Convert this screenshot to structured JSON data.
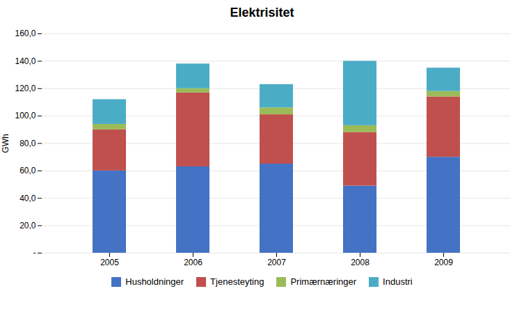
{
  "chart_data": {
    "type": "bar",
    "stacked": true,
    "title": "Elektrisitet",
    "categories": [
      "2005",
      "2006",
      "2007",
      "2008",
      "2009"
    ],
    "series": [
      {
        "name": "Husholdninger",
        "color": "#4472C4",
        "values": [
          60.0,
          63.0,
          65.0,
          49.0,
          70.0
        ]
      },
      {
        "name": "Tjenesteyting",
        "color": "#C0504D",
        "values": [
          30.0,
          54.0,
          36.0,
          39.0,
          44.0
        ]
      },
      {
        "name": "Primærnæringer",
        "color": "#9BBB59",
        "values": [
          4.0,
          3.0,
          5.0,
          5.0,
          4.0
        ]
      },
      {
        "name": "Industri",
        "color": "#4BACC6",
        "values": [
          18.0,
          18.0,
          17.0,
          47.0,
          17.0
        ]
      }
    ],
    "ylabel": "GWh",
    "ylim": [
      0,
      160
    ],
    "yticks": [
      {
        "value": 0,
        "label": "-"
      },
      {
        "value": 20,
        "label": "20,0"
      },
      {
        "value": 40,
        "label": "40,0"
      },
      {
        "value": 60,
        "label": "60,0"
      },
      {
        "value": 80,
        "label": "80,0"
      },
      {
        "value": 100,
        "label": "100,0"
      },
      {
        "value": 120,
        "label": "120,0"
      },
      {
        "value": 140,
        "label": "140,0"
      },
      {
        "value": 160,
        "label": "160,0"
      }
    ],
    "grid": true,
    "legend": "bottom"
  }
}
